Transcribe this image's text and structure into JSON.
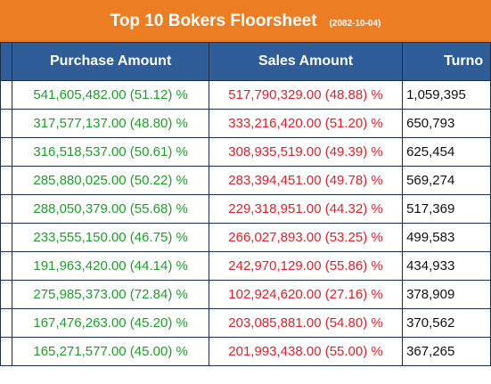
{
  "title": "Top 10 Bokers Floorsheet",
  "date": "(2082-10-04)",
  "columns": {
    "purchase": "Purchase Amount",
    "sales": "Sales Amount",
    "turnover": "Turno"
  },
  "rows": [
    {
      "purchase": "541,605,482.00 (51.12) %",
      "sales": "517,790,329.00 (48.88) %",
      "turnover": "1,059,395"
    },
    {
      "purchase": "317,577,137.00 (48.80) %",
      "sales": "333,216,420.00 (51.20) %",
      "turnover": "650,793"
    },
    {
      "purchase": "316,518,537.00 (50.61) %",
      "sales": "308,935,519.00 (49.39) %",
      "turnover": "625,454"
    },
    {
      "purchase": "285,880,025.00 (50.22) %",
      "sales": "283,394,451.00 (49.78) %",
      "turnover": "569,274"
    },
    {
      "purchase": "288,050,379.00 (55.68) %",
      "sales": "229,318,951.00 (44.32) %",
      "turnover": "517,369"
    },
    {
      "purchase": "233,555,150.00 (46.75) %",
      "sales": "266,027,893.00 (53.25) %",
      "turnover": "499,583"
    },
    {
      "purchase": "191,963,420.00 (44.14) %",
      "sales": "242,970,129.00 (55.86) %",
      "turnover": "434,933"
    },
    {
      "purchase": "275,985,373.00 (72.84) %",
      "sales": "102,924,620.00 (27.16) %",
      "turnover": "378,909"
    },
    {
      "purchase": "167,476,263.00 (45.20) %",
      "sales": "203,085,881.00 (54.80) %",
      "turnover": "370,562"
    },
    {
      "purchase": "165,271,577.00 (45.00) %",
      "sales": "201,993,438.00 (55.00) %",
      "turnover": "367,265"
    }
  ]
}
